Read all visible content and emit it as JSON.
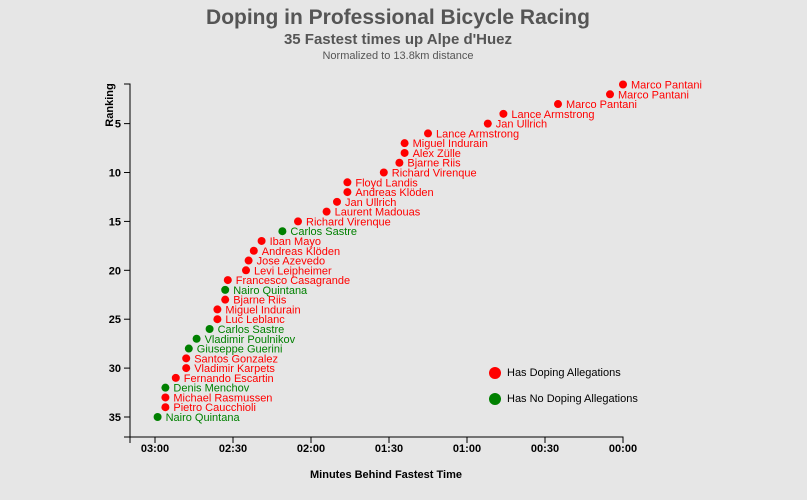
{
  "chart_data": {
    "type": "scatter",
    "title": "Doping in Professional Bicycle Racing",
    "subtitle": "35 Fastest times up Alpe d'Huez",
    "note": "Normalized to 13.8km distance",
    "xlabel": "Minutes Behind Fastest Time",
    "ylabel": "Ranking",
    "x_unit": "seconds behind fastest",
    "x_reversed": true,
    "xlim": [
      0,
      180
    ],
    "ylim": [
      1,
      37
    ],
    "x_ticks": [
      {
        "value": 0,
        "label": "00:00"
      },
      {
        "value": 30,
        "label": "00:30"
      },
      {
        "value": 60,
        "label": "01:00"
      },
      {
        "value": 90,
        "label": "01:30"
      },
      {
        "value": 120,
        "label": "02:00"
      },
      {
        "value": 150,
        "label": "02:30"
      },
      {
        "value": 180,
        "label": "03:00"
      }
    ],
    "y_ticks": [
      {
        "value": 5,
        "label": "5"
      },
      {
        "value": 10,
        "label": "10"
      },
      {
        "value": 15,
        "label": "15"
      },
      {
        "value": 20,
        "label": "20"
      },
      {
        "value": 25,
        "label": "25"
      },
      {
        "value": 30,
        "label": "30"
      },
      {
        "value": 35,
        "label": "35"
      }
    ],
    "colors": {
      "doping": "#ff0000",
      "clean": "#008000"
    },
    "legend": {
      "placement": "bottom-right",
      "items": [
        {
          "label": "Has Doping Allegations",
          "key": "doping"
        },
        {
          "label": "Has No Doping Allegations",
          "key": "clean"
        }
      ]
    },
    "points": [
      {
        "rank": 1,
        "x": 0,
        "name": "Marco Pantani",
        "doping": true
      },
      {
        "rank": 2,
        "x": 5,
        "name": "Marco Pantani",
        "doping": true
      },
      {
        "rank": 3,
        "x": 25,
        "name": "Marco Pantani",
        "doping": true
      },
      {
        "rank": 4,
        "x": 46,
        "name": "Lance Armstrong",
        "doping": true
      },
      {
        "rank": 5,
        "x": 52,
        "name": "Jan Ullrich",
        "doping": true
      },
      {
        "rank": 6,
        "x": 75,
        "name": "Lance Armstrong",
        "doping": true
      },
      {
        "rank": 7,
        "x": 84,
        "name": "Miguel Indurain",
        "doping": true
      },
      {
        "rank": 8,
        "x": 84,
        "name": "Alex Zülle",
        "doping": true
      },
      {
        "rank": 9,
        "x": 86,
        "name": "Bjarne Riis",
        "doping": true
      },
      {
        "rank": 10,
        "x": 92,
        "name": "Richard Virenque",
        "doping": true
      },
      {
        "rank": 11,
        "x": 106,
        "name": "Floyd Landis",
        "doping": true
      },
      {
        "rank": 12,
        "x": 106,
        "name": "Andreas Klöden",
        "doping": true
      },
      {
        "rank": 13,
        "x": 110,
        "name": "Jan Ullrich",
        "doping": true
      },
      {
        "rank": 14,
        "x": 114,
        "name": "Laurent Madouas",
        "doping": true
      },
      {
        "rank": 15,
        "x": 125,
        "name": "Richard Virenque",
        "doping": true
      },
      {
        "rank": 16,
        "x": 131,
        "name": "Carlos Sastre",
        "doping": false
      },
      {
        "rank": 17,
        "x": 139,
        "name": "Iban Mayo",
        "doping": true
      },
      {
        "rank": 18,
        "x": 142,
        "name": "Andreas Klöden",
        "doping": true
      },
      {
        "rank": 19,
        "x": 144,
        "name": "Jose Azevedo",
        "doping": true
      },
      {
        "rank": 20,
        "x": 145,
        "name": "Levi Leipheimer",
        "doping": true
      },
      {
        "rank": 21,
        "x": 152,
        "name": "Francesco Casagrande",
        "doping": true
      },
      {
        "rank": 22,
        "x": 153,
        "name": "Nairo Quintana",
        "doping": false
      },
      {
        "rank": 23,
        "x": 153,
        "name": "Bjarne Riis",
        "doping": true
      },
      {
        "rank": 24,
        "x": 156,
        "name": "Miguel Indurain",
        "doping": true
      },
      {
        "rank": 25,
        "x": 156,
        "name": "Luc Leblanc",
        "doping": true
      },
      {
        "rank": 26,
        "x": 159,
        "name": "Carlos Sastre",
        "doping": false
      },
      {
        "rank": 27,
        "x": 164,
        "name": "Vladimir Poulnikov",
        "doping": false
      },
      {
        "rank": 28,
        "x": 167,
        "name": "Giuseppe Guerini",
        "doping": false
      },
      {
        "rank": 29,
        "x": 168,
        "name": "Santos Gonzalez",
        "doping": true
      },
      {
        "rank": 30,
        "x": 168,
        "name": "Vladimir Karpets",
        "doping": true
      },
      {
        "rank": 31,
        "x": 172,
        "name": "Fernando Escartin",
        "doping": true
      },
      {
        "rank": 32,
        "x": 176,
        "name": "Denis Menchov",
        "doping": false
      },
      {
        "rank": 33,
        "x": 176,
        "name": "Michael Rasmussen",
        "doping": true
      },
      {
        "rank": 34,
        "x": 176,
        "name": "Pietro Caucchioli",
        "doping": true
      },
      {
        "rank": 35,
        "x": 179,
        "name": "Nairo Quintana",
        "doping": false
      }
    ]
  }
}
